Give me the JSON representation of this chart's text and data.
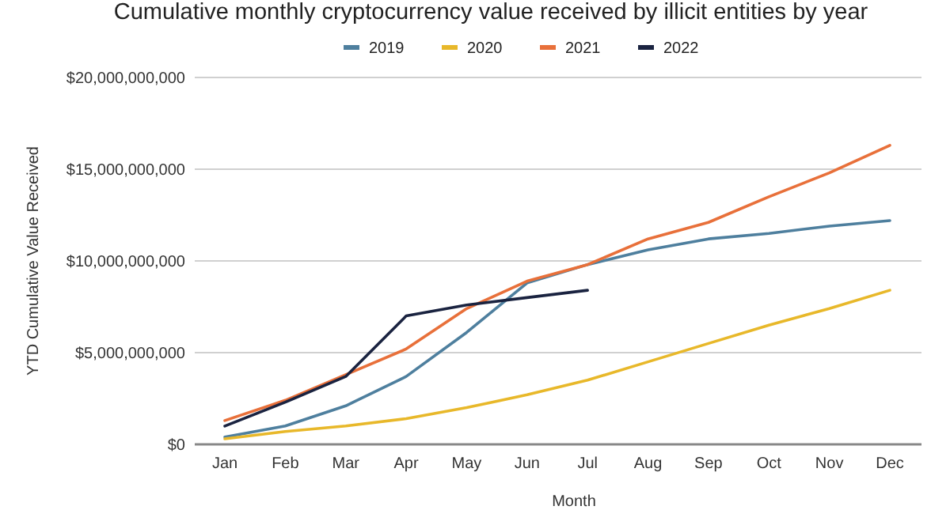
{
  "chart_data": {
    "type": "line",
    "title": "Cumulative monthly cryptocurrency value received by illicit entities by year",
    "xlabel": "Month",
    "ylabel": "YTD Cumulative Value Received",
    "categories": [
      "Jan",
      "Feb",
      "Mar",
      "Apr",
      "May",
      "Jun",
      "Jul",
      "Aug",
      "Sep",
      "Oct",
      "Nov",
      "Dec"
    ],
    "series": [
      {
        "name": "2019",
        "color": "#4e7f9e",
        "values": [
          400000000,
          1000000000,
          2100000000,
          3700000000,
          6100000000,
          8800000000,
          9800000000,
          10600000000,
          11200000000,
          11500000000,
          11900000000,
          12200000000
        ]
      },
      {
        "name": "2020",
        "color": "#e8b82a",
        "values": [
          300000000,
          700000000,
          1000000000,
          1400000000,
          2000000000,
          2700000000,
          3500000000,
          4500000000,
          5500000000,
          6500000000,
          7400000000,
          8400000000
        ]
      },
      {
        "name": "2021",
        "color": "#e8703a",
        "values": [
          1300000000,
          2400000000,
          3800000000,
          5200000000,
          7400000000,
          8900000000,
          9800000000,
          11200000000,
          12100000000,
          13500000000,
          14800000000,
          16300000000
        ]
      },
      {
        "name": "2022",
        "color": "#1a2340",
        "values": [
          1000000000,
          2300000000,
          3700000000,
          7000000000,
          7600000000,
          8000000000,
          8400000000,
          null,
          null,
          null,
          null,
          null
        ]
      }
    ],
    "ylim": [
      0,
      20000000000
    ],
    "yticks": [
      {
        "value": 0,
        "label": "$0"
      },
      {
        "value": 5000000000,
        "label": "$5,000,000,000"
      },
      {
        "value": 10000000000,
        "label": "$10,000,000,000"
      },
      {
        "value": 15000000000,
        "label": "$15,000,000,000"
      },
      {
        "value": 20000000000,
        "label": "$20,000,000,000"
      }
    ],
    "grid": "y",
    "legend": "top"
  }
}
